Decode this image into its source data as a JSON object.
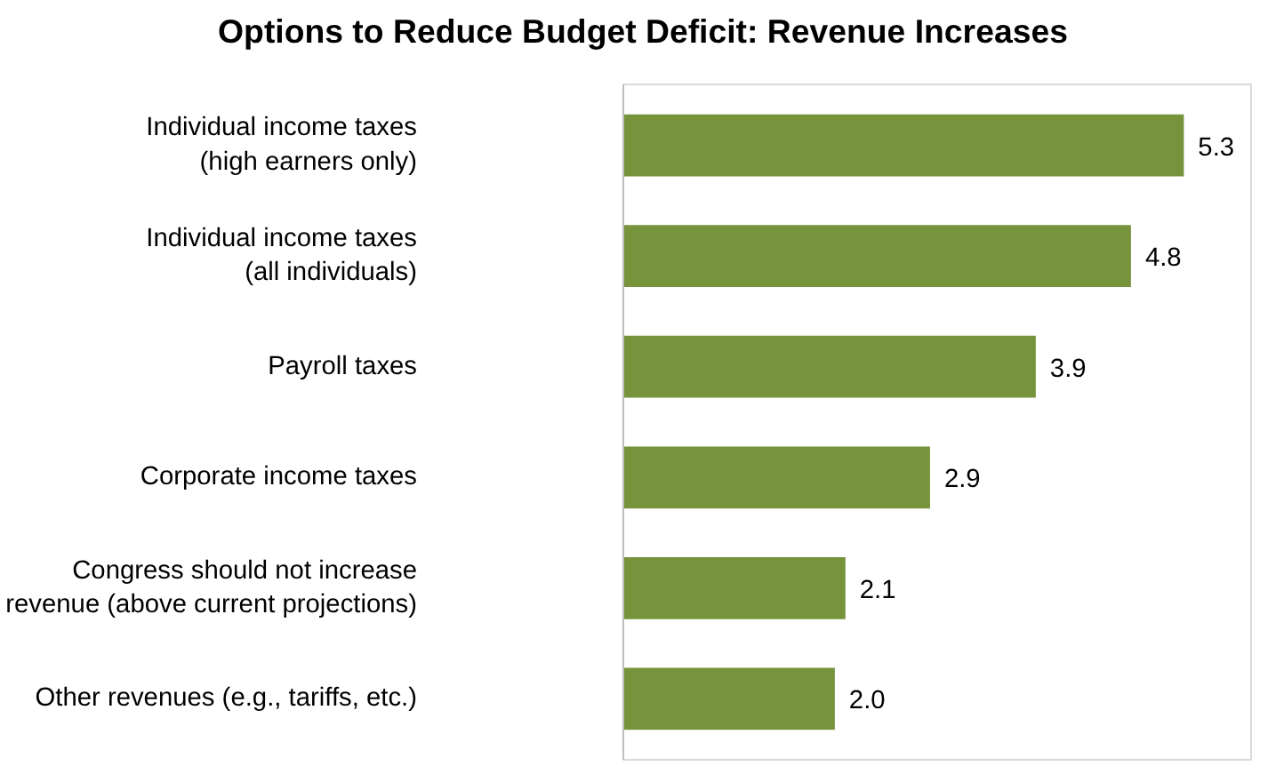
{
  "chart_data": {
    "type": "bar",
    "orientation": "horizontal",
    "title": "Options to Reduce Budget Deficit: Revenue Increases",
    "categories": [
      "Individual income taxes\n(high earners only)",
      "Individual income taxes\n(all individuals)",
      "Payroll taxes",
      "Corporate income taxes",
      "Congress should not increase\nrevenue (above current projections)",
      "Other revenues (e.g., tariffs, etc.)"
    ],
    "values": [
      5.3,
      4.8,
      3.9,
      2.9,
      2.1,
      2.0
    ],
    "value_labels": [
      "5.3",
      "4.8",
      "3.9",
      "2.9",
      "2.1",
      "2.0"
    ],
    "color": "#77933c"
  }
}
